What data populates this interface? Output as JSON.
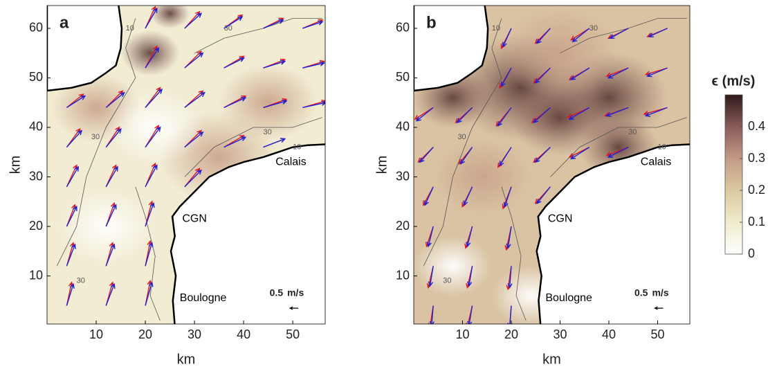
{
  "chart_data": [
    {
      "type": "quiver",
      "panel_label": "a",
      "xlabel": "km",
      "ylabel": "km",
      "xlim": [
        0,
        56.6
      ],
      "ylim": [
        0.3,
        64.6
      ],
      "xticks": [
        10,
        20,
        30,
        40,
        50
      ],
      "yticks": [
        10,
        20,
        30,
        40,
        50,
        60
      ],
      "places": [
        "Calais",
        "CGN",
        "Boulogne"
      ],
      "contour_levels": [
        10,
        30
      ],
      "scale_arrow": {
        "value": 0.5,
        "unit": "m/s"
      },
      "x": [
        4,
        12,
        20,
        4,
        12,
        20,
        4,
        12,
        20,
        4,
        12,
        20,
        28,
        4,
        12,
        20,
        28,
        36,
        44,
        4,
        12,
        20,
        28,
        36,
        44,
        52,
        20,
        28,
        36,
        44,
        52,
        20,
        28,
        36,
        44,
        52
      ],
      "y": [
        4,
        4,
        4,
        12,
        12,
        12,
        20,
        20,
        20,
        28,
        28,
        28,
        28,
        36,
        36,
        36,
        36,
        36,
        36,
        44,
        44,
        44,
        44,
        44,
        44,
        44,
        52,
        52,
        52,
        52,
        52,
        60,
        60,
        60,
        60,
        60
      ],
      "series": [
        {
          "color": "#e3141e",
          "u": [
            0.3,
            0.4,
            0.3,
            0.4,
            0.4,
            0.3,
            0.5,
            0.5,
            0.4,
            0.6,
            0.6,
            0.6,
            0.9,
            0.8,
            0.8,
            0.8,
            1.0,
            1.2,
            1.3,
            1.0,
            1.0,
            0.9,
            1.1,
            1.3,
            1.4,
            1.4,
            0.7,
            1.0,
            1.2,
            1.3,
            1.3,
            0.6,
            0.9,
            1.1,
            1.2,
            1.2
          ],
          "v": [
            1.4,
            1.4,
            1.5,
            1.4,
            1.4,
            1.5,
            1.3,
            1.4,
            1.5,
            1.3,
            1.3,
            1.4,
            1.1,
            1.1,
            1.2,
            1.3,
            1.0,
            0.7,
            0.5,
            0.8,
            1.0,
            1.2,
            1.0,
            0.7,
            0.5,
            0.4,
            1.3,
            1.0,
            0.7,
            0.5,
            0.4,
            1.3,
            1.0,
            0.8,
            0.6,
            0.5
          ]
        },
        {
          "color": "#1a22e0",
          "u": [
            0.4,
            0.5,
            0.4,
            0.5,
            0.5,
            0.4,
            0.6,
            0.6,
            0.5,
            0.7,
            0.7,
            0.7,
            1.0,
            0.9,
            0.9,
            0.9,
            1.1,
            1.3,
            1.3,
            1.1,
            1.1,
            1.0,
            1.2,
            1.3,
            1.4,
            1.4,
            0.8,
            1.1,
            1.2,
            1.3,
            1.3,
            0.7,
            1.0,
            1.1,
            1.2,
            1.2
          ],
          "v": [
            1.3,
            1.3,
            1.4,
            1.3,
            1.3,
            1.4,
            1.2,
            1.3,
            1.4,
            1.2,
            1.2,
            1.3,
            1.0,
            1.0,
            1.1,
            1.2,
            0.9,
            0.6,
            0.5,
            0.7,
            0.9,
            1.1,
            0.9,
            0.6,
            0.4,
            0.3,
            1.2,
            0.9,
            0.6,
            0.4,
            0.3,
            1.2,
            0.9,
            0.7,
            0.5,
            0.4
          ]
        }
      ]
    },
    {
      "type": "quiver",
      "panel_label": "b",
      "xlabel": "km",
      "ylabel": "km",
      "xlim": [
        0,
        56.6
      ],
      "ylim": [
        0.3,
        64.6
      ],
      "xticks": [
        10,
        20,
        30,
        40,
        50
      ],
      "yticks": [
        10,
        20,
        30,
        40,
        50,
        60
      ],
      "places": [
        "Calais",
        "CGN",
        "Boulogne"
      ],
      "contour_levels": [
        10,
        30
      ],
      "scale_arrow": {
        "value": 0.5,
        "unit": "m/s"
      },
      "x": [
        4,
        12,
        20,
        4,
        12,
        20,
        4,
        12,
        20,
        4,
        12,
        20,
        28,
        4,
        12,
        20,
        28,
        36,
        44,
        4,
        12,
        20,
        28,
        36,
        44,
        52,
        20,
        28,
        36,
        44,
        52,
        20,
        28,
        36,
        44,
        52
      ],
      "y": [
        4,
        4,
        4,
        12,
        12,
        12,
        20,
        20,
        20,
        28,
        28,
        28,
        28,
        36,
        36,
        36,
        36,
        36,
        36,
        44,
        44,
        44,
        44,
        44,
        44,
        44,
        52,
        52,
        52,
        52,
        52,
        60,
        60,
        60,
        60,
        60
      ],
      "series": [
        {
          "color": "#e3141e",
          "u": [
            -0.2,
            -0.3,
            -0.1,
            -0.3,
            -0.3,
            -0.2,
            -0.4,
            -0.4,
            -0.3,
            -0.6,
            -0.6,
            -0.5,
            -0.9,
            -0.9,
            -0.8,
            -0.8,
            -1.0,
            -1.2,
            -1.3,
            -1.1,
            -1.0,
            -0.9,
            -1.1,
            -1.3,
            -1.4,
            -1.4,
            -0.7,
            -1.0,
            -1.2,
            -1.3,
            -1.3,
            -0.6,
            -0.9,
            -1.1,
            -1.2,
            -1.2
          ],
          "v": [
            -1.3,
            -1.3,
            -1.3,
            -1.3,
            -1.3,
            -1.4,
            -1.2,
            -1.3,
            -1.4,
            -1.1,
            -1.2,
            -1.3,
            -1.0,
            -0.9,
            -1.0,
            -1.2,
            -0.9,
            -0.6,
            -0.5,
            -0.7,
            -0.9,
            -1.1,
            -0.9,
            -0.6,
            -0.5,
            -0.4,
            -1.2,
            -0.9,
            -0.7,
            -0.5,
            -0.4,
            -1.2,
            -0.9,
            -0.7,
            -0.6,
            -0.5
          ]
        },
        {
          "color": "#1a22e0",
          "u": [
            -0.1,
            -0.2,
            -0.1,
            -0.2,
            -0.2,
            -0.1,
            -0.3,
            -0.3,
            -0.2,
            -0.5,
            -0.5,
            -0.4,
            -0.8,
            -0.8,
            -0.7,
            -0.7,
            -0.9,
            -1.1,
            -1.2,
            -1.0,
            -0.9,
            -0.8,
            -1.0,
            -1.2,
            -1.3,
            -1.3,
            -0.6,
            -0.9,
            -1.1,
            -1.2,
            -1.2,
            -0.5,
            -0.8,
            -1.0,
            -1.1,
            -1.1
          ],
          "v": [
            -1.2,
            -1.2,
            -1.3,
            -1.2,
            -1.2,
            -1.3,
            -1.2,
            -1.2,
            -1.3,
            -1.1,
            -1.1,
            -1.2,
            -1.0,
            -0.9,
            -1.0,
            -1.1,
            -0.9,
            -0.7,
            -0.6,
            -0.8,
            -0.9,
            -1.1,
            -0.9,
            -0.7,
            -0.5,
            -0.5,
            -1.1,
            -0.9,
            -0.7,
            -0.6,
            -0.5,
            -1.1,
            -0.9,
            -0.8,
            -0.6,
            -0.5
          ]
        }
      ]
    },
    {
      "type": "colorbar",
      "label": "ϵ (m/s)",
      "ylim": [
        0,
        0.5
      ],
      "yticks": [
        0,
        0.1,
        0.2,
        0.3,
        0.4
      ]
    }
  ]
}
